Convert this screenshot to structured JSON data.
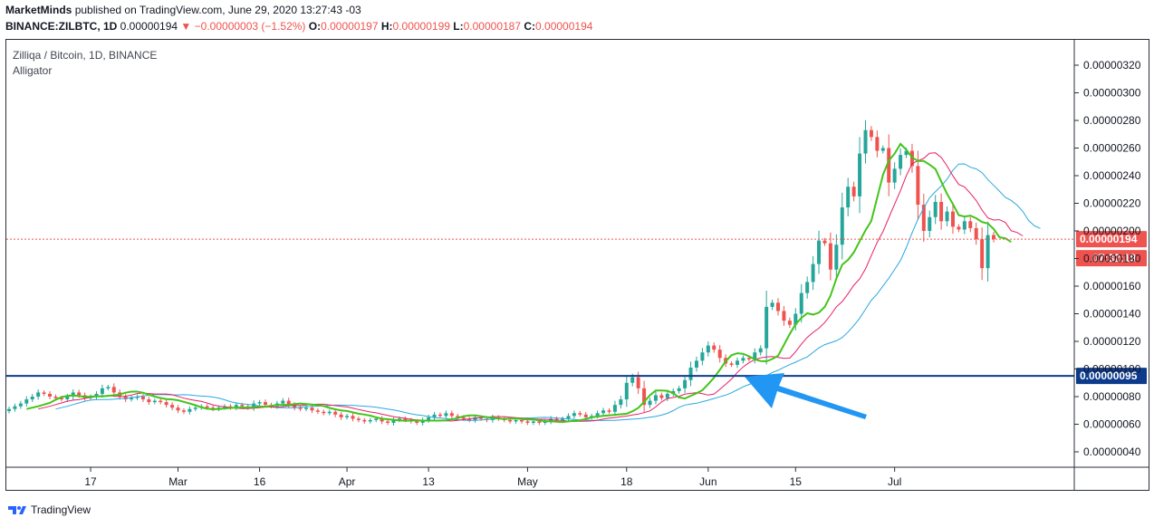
{
  "header": {
    "author": "MarketMinds",
    "published_text": "published on TradingView.com, June 29, 2020 13:27:43 -03"
  },
  "quote": {
    "symbol": "BINANCE:ZILBTC, 1D",
    "last": "0.00000194",
    "change": "−0.00000003 (−1.52%)",
    "o_label": "O:",
    "o": "0.00000197",
    "h_label": "H:",
    "h": "0.00000199",
    "l_label": "L:",
    "l": "0.00000187",
    "c_label": "C:",
    "c": "0.00000194"
  },
  "legend": {
    "title": "Zilliqa / Bitcoin, 1D, BINANCE",
    "indicator": "Alligator"
  },
  "price_axis": {
    "ticks": [
      "0.00000320",
      "0.00000300",
      "0.00000280",
      "0.00000260",
      "0.00000240",
      "0.00000220",
      "0.00000200",
      "0.00000180",
      "0.00000160",
      "0.00000140",
      "0.00000120",
      "0.00000100",
      "0.00000080",
      "0.00000060",
      "0.00000040"
    ]
  },
  "badges": {
    "last_price": "0.00000194",
    "countdown": "07:32:19",
    "support_level": "0.00000095"
  },
  "footer": {
    "brand": "TradingView"
  },
  "colors": {
    "up": "#26a69a",
    "down": "#ef5350",
    "jaw": "#29a8e0",
    "teeth": "#e91e63",
    "lips": "#43c41a",
    "support": "#0d3b8c",
    "arrow": "#2196f3"
  },
  "chart_data": {
    "type": "candlestick",
    "title": "Zilliqa / Bitcoin, 1D, BINANCE",
    "x_tick_labels": [
      "17",
      "Mar",
      "16",
      "Apr",
      "13",
      "May",
      "18",
      "Jun",
      "15",
      "Jul"
    ],
    "y_unit": "BTC",
    "ylim": [
      3e-07,
      3.3e-06
    ],
    "horizontal_line": 9.5e-07,
    "last_price": 1.94e-06,
    "close_series": [
      7.1e-07,
      7.3e-07,
      7.5e-07,
      7.8e-07,
      8e-07,
      8.3e-07,
      8.2e-07,
      8e-07,
      7.9e-07,
      7.8e-07,
      8e-07,
      8.3e-07,
      8.1e-07,
      7.9e-07,
      8e-07,
      8.2e-07,
      8.6e-07,
      8.7e-07,
      8.3e-07,
      8e-07,
      7.8e-07,
      7.9e-07,
      8e-07,
      7.8e-07,
      7.6e-07,
      7.7e-07,
      7.6e-07,
      7.4e-07,
      7.2e-07,
      7e-07,
      6.9e-07,
      7.1e-07,
      7.2e-07,
      7.3e-07,
      7.2e-07,
      7.1e-07,
      7.2e-07,
      7.3e-07,
      7.2e-07,
      7.4e-07,
      7.3e-07,
      7.2e-07,
      7.5e-07,
      7.6e-07,
      7.4e-07,
      7.3e-07,
      7.5e-07,
      7.7e-07,
      7.4e-07,
      7.2e-07,
      7.1e-07,
      7.2e-07,
      7e-07,
      6.9e-07,
      6.8e-07,
      6.9e-07,
      6.7e-07,
      6.5e-07,
      6.6e-07,
      6.4e-07,
      6.3e-07,
      6.2e-07,
      6.3e-07,
      6.4e-07,
      6.2e-07,
      6.1e-07,
      6.3e-07,
      6.4e-07,
      6.3e-07,
      6.2e-07,
      6.1e-07,
      6.3e-07,
      6.5e-07,
      6.7e-07,
      6.6e-07,
      6.8e-07,
      6.6e-07,
      6.5e-07,
      6.4e-07,
      6.3e-07,
      6.5e-07,
      6.4e-07,
      6.3e-07,
      6.5e-07,
      6.4e-07,
      6.3e-07,
      6.2e-07,
      6.3e-07,
      6.2e-07,
      6.1e-07,
      6.2e-07,
      6.1e-07,
      6.2e-07,
      6.4e-07,
      6.3e-07,
      6.4e-07,
      6.6e-07,
      6.8e-07,
      6.7e-07,
      6.5e-07,
      6.6e-07,
      6.8e-07,
      7e-07,
      6.9e-07,
      7.4e-07,
      7.8e-07,
      9e-07,
      9.4e-07,
      8.6e-07,
      7.4e-07,
      7.7e-07,
      8.1e-07,
      7.9e-07,
      8.2e-07,
      8.4e-07,
      8.6e-07,
      9.2e-07,
      1.01e-06,
      1.06e-06,
      1.12e-06,
      1.17e-06,
      1.14e-06,
      1.08e-06,
      1.04e-06,
      1.03e-06,
      1.06e-06,
      1.08e-06,
      1.07e-06,
      1.12e-06,
      1.15e-06,
      1.45e-06,
      1.48e-06,
      1.42e-06,
      1.35e-06,
      1.32e-06,
      1.4e-06,
      1.55e-06,
      1.63e-06,
      1.76e-06,
      1.93e-06,
      1.91e-06,
      1.72e-06,
      1.9e-06,
      2.17e-06,
      2.32e-06,
      2.25e-06,
      2.56e-06,
      2.73e-06,
      2.68e-06,
      2.58e-06,
      2.6e-06,
      2.35e-06,
      2.45e-06,
      2.55e-06,
      2.58e-06,
      2.47e-06,
      2.19e-06,
      2e-06,
      2.1e-06,
      2.21e-06,
      2.07e-06,
      2.14e-06,
      2.03e-06,
      2.01e-06,
      2.07e-06,
      2.02e-06,
      1.94e-06,
      1.73e-06,
      1.97e-06,
      1.94e-06
    ]
  }
}
